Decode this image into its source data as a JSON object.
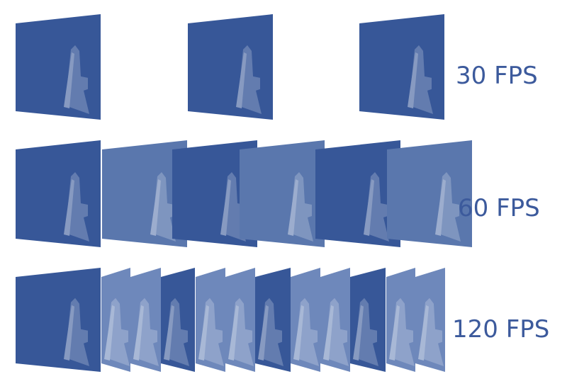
{
  "rows": [
    {
      "label": "30 FPS",
      "frames": [
        "dark",
        "dark",
        "dark"
      ]
    },
    {
      "label": "60 FPS",
      "frames": [
        "dark",
        "medium",
        "dark",
        "medium",
        "dark",
        "medium"
      ]
    },
    {
      "label": "120 FPS",
      "frames": [
        "dark",
        "light",
        "light",
        "dark",
        "light",
        "light",
        "dark",
        "light",
        "light",
        "dark",
        "light",
        "light"
      ]
    }
  ],
  "colors": {
    "dark": "#375798",
    "medium": "#5a77ad",
    "light": "#6e88bb",
    "text": "#3c5a9c"
  }
}
